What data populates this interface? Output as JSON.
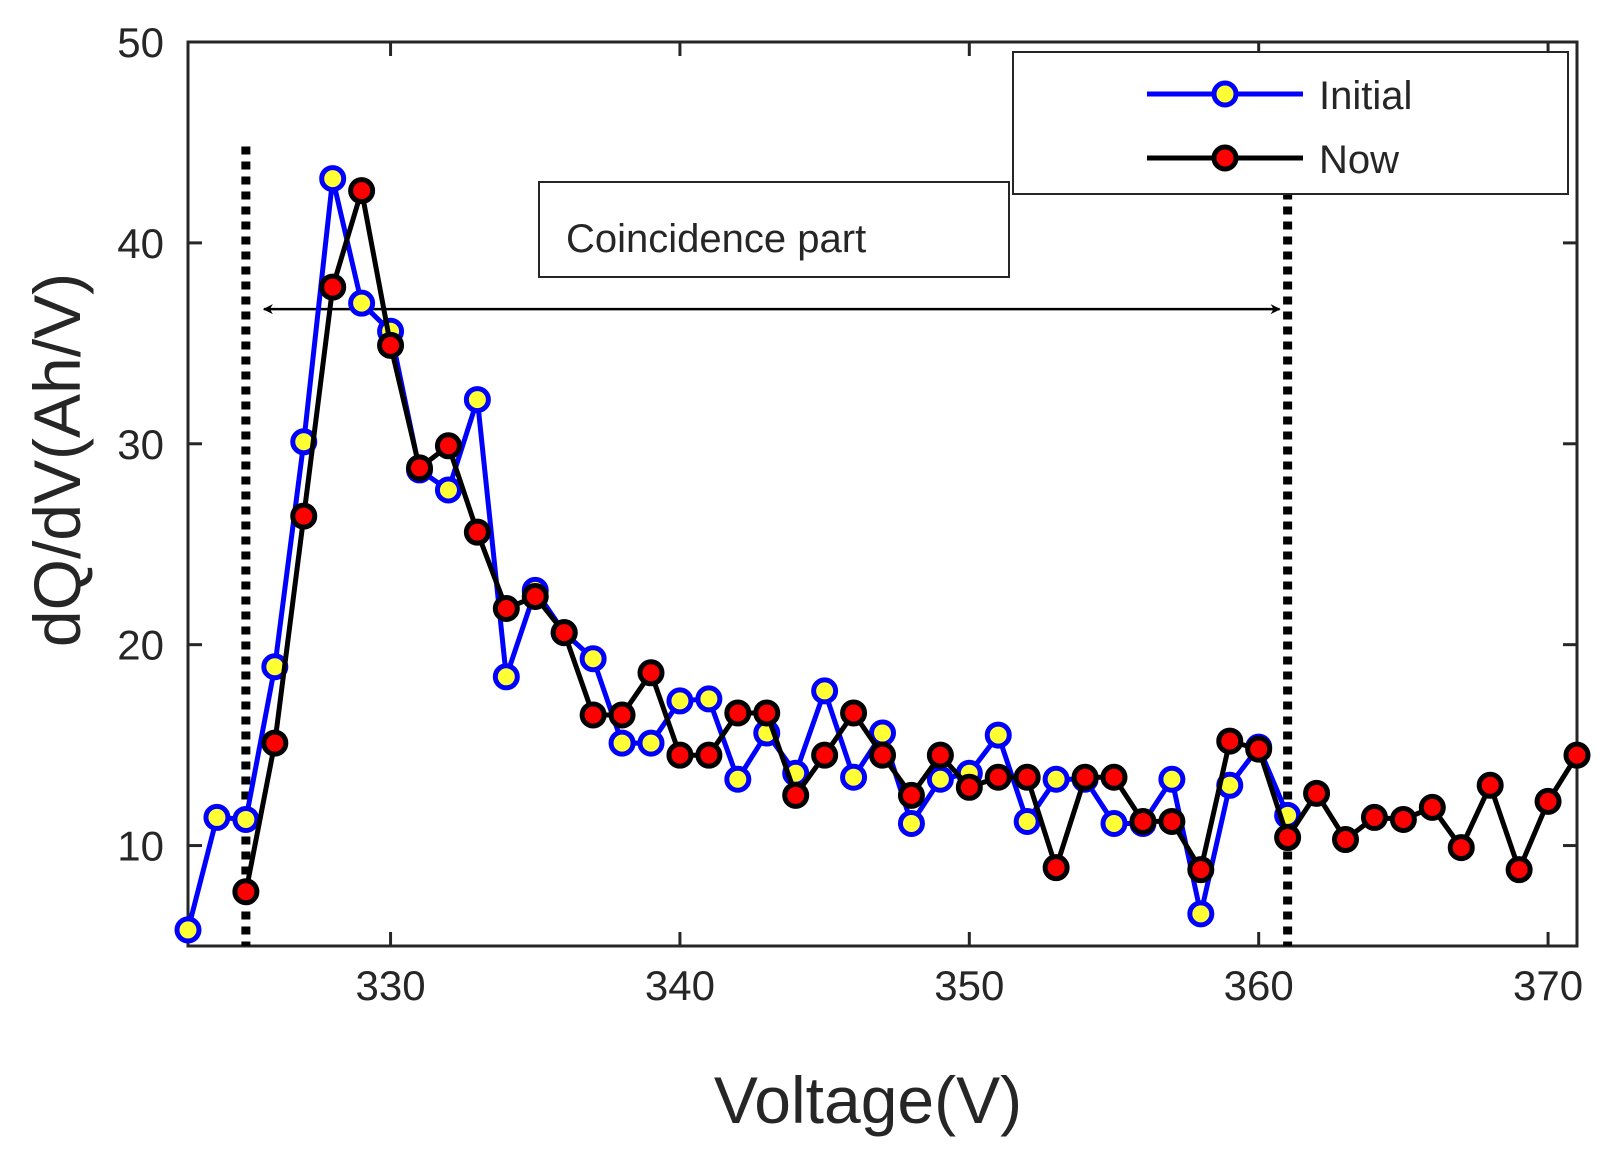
{
  "chart_data": {
    "type": "line",
    "xlabel": "Voltage(V)",
    "ylabel": "dQ/dV(Ah/V)",
    "xlim": [
      323,
      371
    ],
    "ylim": [
      5,
      50
    ],
    "xticks": [
      330,
      340,
      350,
      360,
      370
    ],
    "yticks": [
      10,
      20,
      30,
      40,
      50
    ],
    "grid": false,
    "legend_position": "top-right",
    "series": [
      {
        "name": "Initial",
        "line_color": "#0000ff",
        "marker_fill": "#ffff33",
        "x": [
          323,
          324,
          325,
          326,
          327,
          328,
          329,
          330,
          331,
          332,
          333,
          334,
          335,
          336,
          337,
          338,
          339,
          340,
          341,
          342,
          343,
          344,
          345,
          346,
          347,
          348,
          349,
          350,
          351,
          352,
          353,
          354,
          355,
          356,
          357,
          358,
          359,
          360,
          361
        ],
        "y": [
          5.8,
          11.4,
          11.3,
          18.9,
          30.1,
          43.2,
          37.0,
          35.6,
          28.7,
          27.7,
          32.2,
          18.4,
          22.7,
          20.6,
          19.3,
          15.1,
          15.1,
          17.2,
          17.3,
          13.3,
          15.6,
          13.6,
          17.7,
          13.4,
          15.6,
          11.1,
          13.3,
          13.6,
          15.5,
          11.2,
          13.3,
          13.3,
          11.1,
          11.1,
          13.3,
          6.6,
          13.0,
          14.9,
          11.5
        ]
      },
      {
        "name": "Now",
        "line_color": "#000000",
        "marker_fill": "#ff0000",
        "x": [
          325,
          326,
          327,
          328,
          329,
          330,
          331,
          332,
          333,
          334,
          335,
          336,
          337,
          338,
          339,
          340,
          341,
          342,
          343,
          344,
          345,
          346,
          347,
          348,
          349,
          350,
          351,
          352,
          353,
          354,
          355,
          356,
          357,
          358,
          359,
          360,
          361,
          362,
          363,
          364,
          365,
          366,
          367,
          368,
          369,
          370,
          371
        ],
        "y": [
          7.7,
          15.1,
          26.4,
          37.8,
          42.6,
          34.9,
          28.8,
          29.9,
          25.6,
          21.8,
          22.4,
          20.6,
          16.5,
          16.5,
          18.6,
          14.5,
          14.5,
          16.6,
          16.6,
          12.5,
          14.5,
          16.6,
          14.5,
          12.5,
          14.5,
          12.9,
          13.4,
          13.4,
          8.9,
          13.4,
          13.4,
          11.2,
          11.2,
          8.8,
          15.2,
          14.8,
          10.4,
          12.6,
          10.3,
          11.4,
          11.3,
          11.9,
          9.9,
          13.0,
          8.8,
          12.2,
          14.5
        ]
      }
    ],
    "annotation": {
      "text": "Coincidence part",
      "vlines_x": [
        325,
        361
      ],
      "arrow_from_x": 325,
      "arrow_to_x": 361,
      "arrow_y": 36.7
    }
  }
}
